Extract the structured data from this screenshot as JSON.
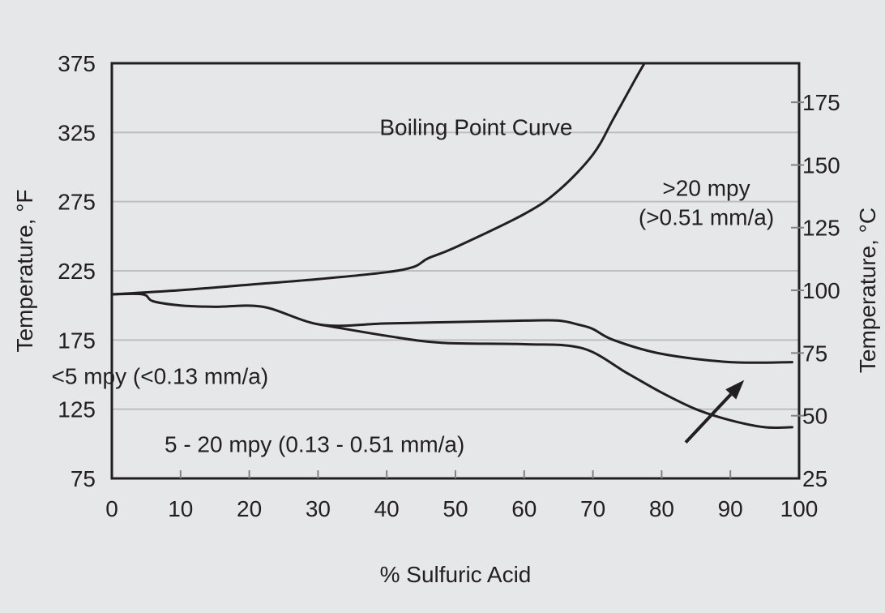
{
  "chart_data": {
    "type": "line",
    "title": "",
    "xlabel": "% Sulfuric Acid",
    "ylabel": "Temperature, °F",
    "ylabel_right": "Temperature, °C",
    "xlim": [
      0,
      100
    ],
    "ylim": [
      75,
      375
    ],
    "ylim_right": [
      25,
      190.56
    ],
    "x_ticks": [
      "0",
      "10",
      "20",
      "30",
      "40",
      "50",
      "60",
      "70",
      "80",
      "90",
      "100"
    ],
    "x_tick_values": [
      0,
      10,
      20,
      30,
      40,
      50,
      60,
      70,
      80,
      90,
      100
    ],
    "y_ticks": [
      "75",
      "125",
      "175",
      "225",
      "275",
      "325",
      "375"
    ],
    "y_tick_values": [
      75,
      125,
      175,
      225,
      275,
      325,
      375
    ],
    "y_ticks_right": [
      "25",
      "50",
      "75",
      "100",
      "125",
      "150",
      "175"
    ],
    "y_tick_values_right": [
      25,
      50,
      75,
      100,
      125,
      150,
      175
    ],
    "grid": true,
    "line_color": "#231f20",
    "grid_color": "#bcbec0",
    "series": [
      {
        "name": "Boiling Point Curve",
        "x": [
          0,
          10,
          20,
          30,
          40,
          44,
          46,
          50,
          60,
          65,
          70,
          73,
          76,
          77.5
        ],
        "y": [
          208,
          211,
          215,
          219,
          224,
          228,
          234,
          242,
          266,
          283,
          309,
          335,
          362,
          375
        ]
      },
      {
        "name": "",
        "x": [
          0,
          4.5,
          6,
          10,
          15,
          22,
          30.5,
          40,
          50,
          60,
          65,
          68,
          70,
          73,
          80,
          90,
          99
        ],
        "y": [
          208,
          208,
          203,
          200,
          199,
          199,
          186,
          187,
          188,
          189,
          189,
          186,
          183,
          175,
          165,
          159,
          159
        ]
      },
      {
        "name": "",
        "x": [
          30.5,
          40,
          48,
          60,
          68.5,
          75,
          80,
          85,
          90,
          95,
          99
        ],
        "y": [
          186,
          178,
          173,
          172,
          169,
          151,
          137,
          125,
          117,
          112,
          112
        ]
      }
    ],
    "annotations": [
      {
        "text": "Boiling Point Curve",
        "x": 53,
        "y": 329
      },
      {
        "text": ">20 mpy",
        "x": 86.5,
        "y": 285
      },
      {
        "text": "(>0.51 mm/a)",
        "x": 86.5,
        "y": 264
      },
      {
        "text": "<5 mpy (<0.13 mm/a)",
        "x": 7,
        "y": 149
      },
      {
        "text": "5 - 20 mpy (0.13 - 0.51 mm/a)",
        "x": 29.5,
        "y": 100
      }
    ],
    "arrow": {
      "from": [
        83.5,
        101
      ],
      "to": [
        92,
        146
      ]
    }
  }
}
